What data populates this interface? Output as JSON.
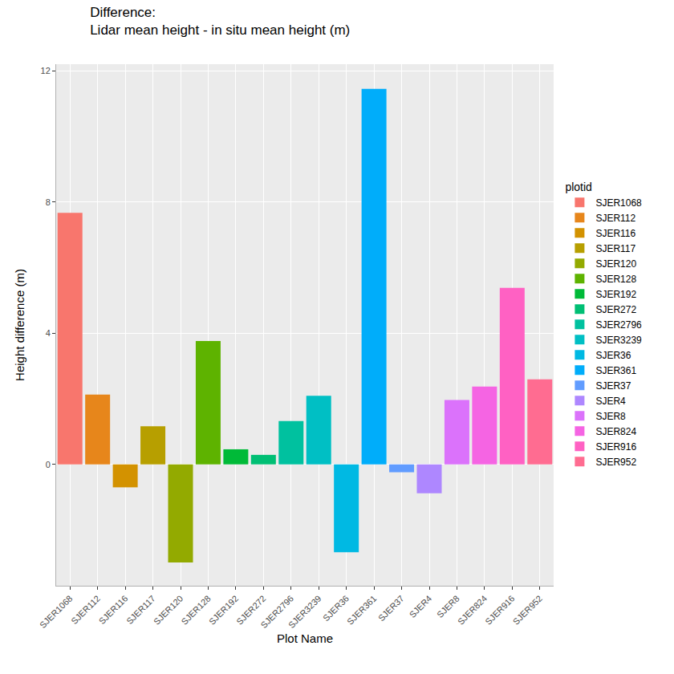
{
  "chart_data": {
    "type": "bar",
    "title": "Difference:\nLidar mean height - in situ mean height (m)",
    "x_label": "Plot Name",
    "y_label": "Height difference (m)",
    "legend_title": "plotid",
    "legend": "right",
    "categories": [
      "SJER1068",
      "SJER112",
      "SJER116",
      "SJER117",
      "SJER120",
      "SJER128",
      "SJER192",
      "SJER272",
      "SJER2796",
      "SJER3239",
      "SJER36",
      "SJER361",
      "SJER37",
      "SJER4",
      "SJER8",
      "SJER824",
      "SJER916",
      "SJER952"
    ],
    "values": [
      7.67,
      2.13,
      -0.7,
      1.16,
      -2.99,
      3.76,
      0.46,
      0.29,
      1.32,
      2.09,
      -2.68,
      11.45,
      -0.24,
      -0.88,
      1.96,
      2.37,
      5.38,
      2.59
    ],
    "colors": [
      "#F8766D",
      "#E7861B",
      "#D39200",
      "#B79F00",
      "#93AA00",
      "#5EB300",
      "#00BA38",
      "#00BF74",
      "#00C19F",
      "#00BFC4",
      "#00B9E3",
      "#00ADFA",
      "#619CFF",
      "#AE87FF",
      "#DB72FB",
      "#F564E3",
      "#FF61C3",
      "#FF6C91"
    ],
    "ylim": [
      -3.7,
      12.2
    ],
    "yticks": [
      0,
      4,
      8,
      12
    ],
    "grid": true
  }
}
